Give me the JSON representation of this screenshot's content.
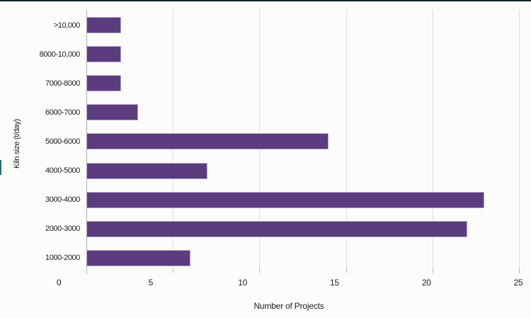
{
  "chart_data": {
    "type": "bar",
    "orientation": "horizontal",
    "title": "",
    "xlabel": "Number of Projects",
    "ylabel": "Kiln size (t/day)",
    "categories": [
      ">10,000",
      "8000-10,000",
      "7000-8000",
      "6000-7000",
      "5000-6000",
      "4000-5000",
      "3000-4000",
      "2000-3000",
      "1000-2000"
    ],
    "values": [
      2,
      2,
      2,
      3,
      14,
      7,
      23,
      22,
      6
    ],
    "xlim": [
      0,
      25
    ],
    "x_ticks": [
      0,
      5,
      10,
      15,
      20,
      25
    ],
    "x_tick_labels": [
      "0",
      "5",
      "10",
      "15",
      "20",
      "25"
    ],
    "grid": true,
    "legend": "none",
    "bar_color": "#5b3c7e",
    "bar_border_color": "#b9a6cf",
    "gridline_color": "#dbdfdb",
    "axis_line_color": "#a9ada7"
  }
}
